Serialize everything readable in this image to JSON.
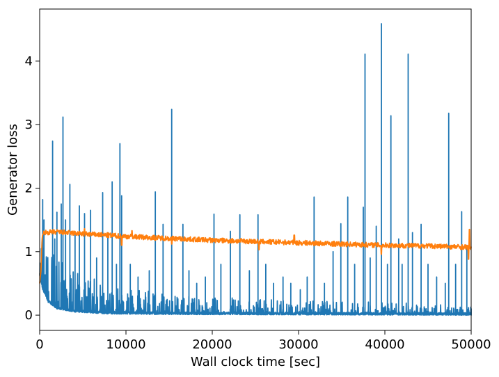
{
  "chart_data": {
    "type": "line",
    "title": "",
    "xlabel": "Wall clock time [sec]",
    "ylabel": "Generator loss",
    "xlim": [
      0,
      50000
    ],
    "ylim": [
      -0.24,
      4.82
    ],
    "xticks": [
      0,
      10000,
      20000,
      30000,
      40000,
      50000
    ],
    "xtick_labels": [
      "0",
      "10000",
      "20000",
      "30000",
      "40000",
      "50000"
    ],
    "yticks": [
      0,
      1,
      2,
      3,
      4
    ],
    "ytick_labels": [
      "0",
      "1",
      "2",
      "3",
      "4"
    ],
    "grid": false,
    "legend": "none",
    "series": [
      {
        "color": "#1f77b4",
        "baseline": [
          [
            0,
            0.62
          ],
          [
            300,
            0.42
          ],
          [
            1000,
            0.2
          ],
          [
            2000,
            0.1
          ],
          [
            4000,
            0.05
          ],
          [
            8000,
            0.02
          ],
          [
            15000,
            0.01
          ],
          [
            50000,
            0.0
          ]
        ],
        "noise_envelope": [
          [
            0,
            0.9
          ],
          [
            2000,
            0.8
          ],
          [
            6000,
            0.55
          ],
          [
            10000,
            0.4
          ],
          [
            20000,
            0.28
          ],
          [
            30000,
            0.22
          ],
          [
            40000,
            0.2
          ],
          [
            50000,
            0.15
          ]
        ],
        "spikes": [
          [
            350,
            1.82
          ],
          [
            500,
            1.5
          ],
          [
            900,
            0.8
          ],
          [
            1500,
            2.74
          ],
          [
            1750,
            1.2
          ],
          [
            2000,
            1.62
          ],
          [
            2500,
            1.75
          ],
          [
            2700,
            3.12
          ],
          [
            3000,
            1.5
          ],
          [
            3500,
            2.06
          ],
          [
            4100,
            1.3
          ],
          [
            4600,
            1.72
          ],
          [
            5200,
            1.6
          ],
          [
            5900,
            1.65
          ],
          [
            6600,
            0.9
          ],
          [
            7300,
            1.93
          ],
          [
            7900,
            1.3
          ],
          [
            8400,
            2.1
          ],
          [
            8900,
            0.8
          ],
          [
            9300,
            2.7
          ],
          [
            9500,
            1.88
          ],
          [
            10500,
            0.8
          ],
          [
            11400,
            0.6
          ],
          [
            12700,
            0.7
          ],
          [
            13400,
            1.94
          ],
          [
            14300,
            1.43
          ],
          [
            15300,
            3.24
          ],
          [
            16600,
            1.43
          ],
          [
            17300,
            0.7
          ],
          [
            18200,
            0.5
          ],
          [
            19200,
            0.6
          ],
          [
            20200,
            1.59
          ],
          [
            21000,
            0.8
          ],
          [
            22100,
            1.32
          ],
          [
            23200,
            1.58
          ],
          [
            24300,
            0.7
          ],
          [
            25300,
            1.58
          ],
          [
            26200,
            0.8
          ],
          [
            27100,
            0.5
          ],
          [
            28200,
            0.6
          ],
          [
            29100,
            0.5
          ],
          [
            30200,
            0.4
          ],
          [
            31000,
            0.6
          ],
          [
            31800,
            1.86
          ],
          [
            33000,
            0.5
          ],
          [
            34000,
            1.0
          ],
          [
            34900,
            1.44
          ],
          [
            35700,
            1.86
          ],
          [
            36500,
            0.8
          ],
          [
            37500,
            1.7
          ],
          [
            37700,
            4.11
          ],
          [
            38300,
            0.9
          ],
          [
            39000,
            1.4
          ],
          [
            39600,
            4.59
          ],
          [
            40300,
            0.8
          ],
          [
            40700,
            3.14
          ],
          [
            41600,
            1.2
          ],
          [
            42000,
            0.8
          ],
          [
            42700,
            4.11
          ],
          [
            43200,
            1.3
          ],
          [
            44200,
            1.43
          ],
          [
            45000,
            0.8
          ],
          [
            46000,
            0.6
          ],
          [
            47000,
            0.5
          ],
          [
            47400,
            3.18
          ],
          [
            48200,
            0.8
          ],
          [
            48900,
            1.63
          ],
          [
            49500,
            1.1
          ],
          [
            50000,
            0.1
          ]
        ]
      },
      {
        "color": "#ff7f0e",
        "trend": [
          [
            0,
            0.5
          ],
          [
            150,
            0.7
          ],
          [
            300,
            1.25
          ],
          [
            500,
            1.3
          ],
          [
            2000,
            1.31
          ],
          [
            5000,
            1.28
          ],
          [
            10000,
            1.24
          ],
          [
            15000,
            1.21
          ],
          [
            20000,
            1.18
          ],
          [
            25000,
            1.16
          ],
          [
            30000,
            1.14
          ],
          [
            35000,
            1.12
          ],
          [
            40000,
            1.1
          ],
          [
            45000,
            1.09
          ],
          [
            50000,
            1.07
          ]
        ],
        "noise_amplitude": 0.04,
        "dips": [
          [
            9500,
            1.1
          ],
          [
            15300,
            1.12
          ],
          [
            25400,
            1.03
          ],
          [
            39600,
            0.96
          ],
          [
            49700,
            0.88
          ]
        ],
        "peaks": [
          [
            5200,
            1.36
          ],
          [
            10700,
            1.33
          ],
          [
            29500,
            1.26
          ],
          [
            49800,
            1.35
          ]
        ]
      }
    ]
  }
}
